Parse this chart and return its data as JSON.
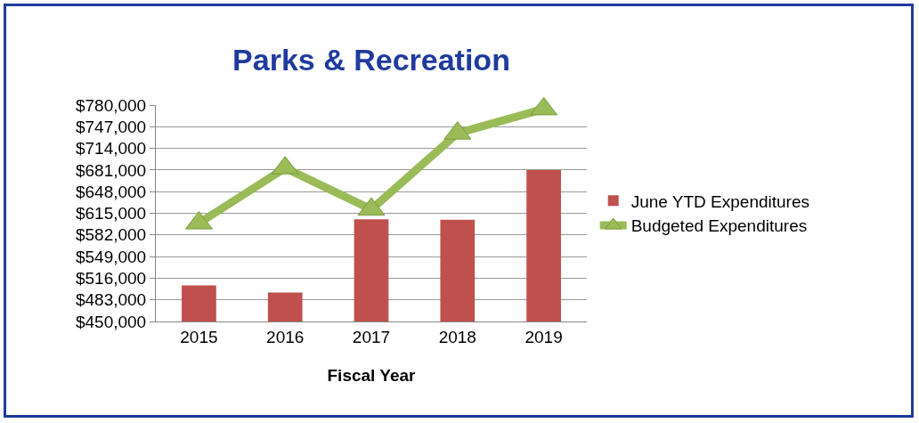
{
  "chart_data": {
    "type": "bar",
    "title": "Parks & Recreation",
    "xlabel": "Fiscal Year",
    "categories": [
      "2015",
      "2016",
      "2017",
      "2018",
      "2019"
    ],
    "series": [
      {
        "name": "June YTD Expenditures",
        "color": "#c0504d",
        "values": [
          505000,
          494000,
          606000,
          605000,
          681000
        ]
      },
      {
        "name": "Budgeted Expenditures",
        "type": "line",
        "color": "#9bbb59",
        "marker": "triangle",
        "values": [
          600000,
          684000,
          621000,
          737000,
          774000
        ]
      }
    ],
    "ylim": [
      450000,
      780000
    ],
    "yticks": [
      {
        "value": 450000,
        "label": "$450,000"
      },
      {
        "value": 483000,
        "label": "$483,000"
      },
      {
        "value": 516000,
        "label": "$516,000"
      },
      {
        "value": 549000,
        "label": "$549,000"
      },
      {
        "value": 582000,
        "label": "$582,000"
      },
      {
        "value": 615000,
        "label": "$615,000"
      },
      {
        "value": 648000,
        "label": "$648,000"
      },
      {
        "value": 681000,
        "label": "$681,000"
      },
      {
        "value": 714000,
        "label": "$714,000"
      },
      {
        "value": 747000,
        "label": "$747,000"
      },
      {
        "value": 780000,
        "label": "$780,000"
      }
    ],
    "grid": "y",
    "legend": "right"
  }
}
